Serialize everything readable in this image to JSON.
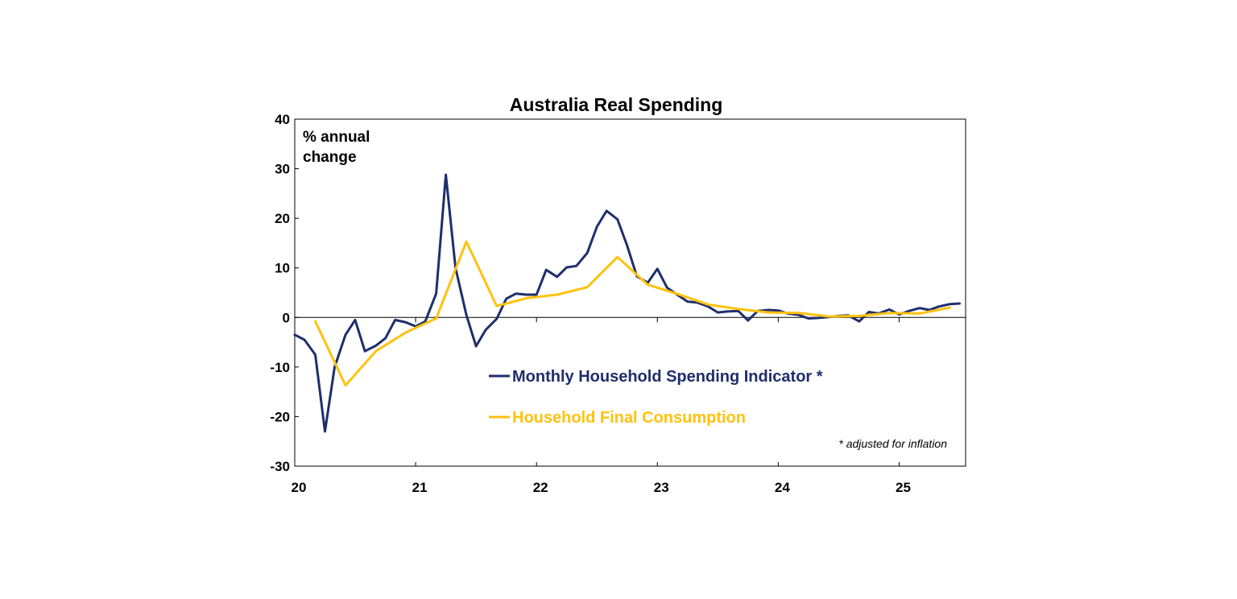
{
  "chart_data": {
    "type": "line",
    "title": "Australia Real Spending",
    "unit_label": [
      "% annual",
      "change"
    ],
    "xlabel": "",
    "ylabel": "",
    "xlim": [
      2020.0,
      2025.55
    ],
    "ylim": [
      -30,
      40
    ],
    "y_ticks": [
      40,
      30,
      20,
      10,
      0,
      -10,
      -20,
      -30
    ],
    "x_ticks": [
      {
        "value": 2020,
        "label": "20"
      },
      {
        "value": 2021,
        "label": "21"
      },
      {
        "value": 2022,
        "label": "22"
      },
      {
        "value": 2023,
        "label": "23"
      },
      {
        "value": 2024,
        "label": "24"
      },
      {
        "value": 2025,
        "label": "25"
      }
    ],
    "grid": false,
    "legend_position": "lower-right inside plot",
    "footnote": "* adjusted for inflation",
    "series": [
      {
        "name": "Monthly Household Spending Indicator *",
        "color": "#1f2e6b",
        "points": [
          [
            2020.0,
            -3.5
          ],
          [
            2020.08,
            -4.5
          ],
          [
            2020.17,
            -7.5
          ],
          [
            2020.25,
            -23.0
          ],
          [
            2020.33,
            -10.0
          ],
          [
            2020.42,
            -3.5
          ],
          [
            2020.5,
            -0.5
          ],
          [
            2020.58,
            -6.8
          ],
          [
            2020.67,
            -5.7
          ],
          [
            2020.75,
            -4.2
          ],
          [
            2020.83,
            -0.5
          ],
          [
            2020.92,
            -1.0
          ],
          [
            2021.0,
            -1.8
          ],
          [
            2021.08,
            -0.8
          ],
          [
            2021.17,
            4.8
          ],
          [
            2021.25,
            28.8
          ],
          [
            2021.33,
            10.0
          ],
          [
            2021.42,
            0.5
          ],
          [
            2021.5,
            -5.8
          ],
          [
            2021.58,
            -2.5
          ],
          [
            2021.67,
            -0.3
          ],
          [
            2021.75,
            3.8
          ],
          [
            2021.83,
            4.8
          ],
          [
            2021.92,
            4.6
          ],
          [
            2022.0,
            4.6
          ],
          [
            2022.08,
            9.6
          ],
          [
            2022.17,
            8.2
          ],
          [
            2022.25,
            10.1
          ],
          [
            2022.33,
            10.4
          ],
          [
            2022.42,
            13.0
          ],
          [
            2022.5,
            18.3
          ],
          [
            2022.58,
            21.5
          ],
          [
            2022.67,
            19.8
          ],
          [
            2022.75,
            14.5
          ],
          [
            2022.83,
            8.3
          ],
          [
            2022.92,
            7.0
          ],
          [
            2023.0,
            9.8
          ],
          [
            2023.08,
            6.0
          ],
          [
            2023.17,
            4.5
          ],
          [
            2023.25,
            3.2
          ],
          [
            2023.33,
            3.0
          ],
          [
            2023.42,
            2.2
          ],
          [
            2023.5,
            1.0
          ],
          [
            2023.58,
            1.2
          ],
          [
            2023.67,
            1.3
          ],
          [
            2023.75,
            -0.6
          ],
          [
            2023.83,
            1.3
          ],
          [
            2023.92,
            1.5
          ],
          [
            2024.0,
            1.4
          ],
          [
            2024.08,
            0.8
          ],
          [
            2024.17,
            0.5
          ],
          [
            2024.25,
            -0.2
          ],
          [
            2024.33,
            -0.1
          ],
          [
            2024.42,
            0.1
          ],
          [
            2024.5,
            0.3
          ],
          [
            2024.58,
            0.4
          ],
          [
            2024.67,
            -0.8
          ],
          [
            2024.75,
            1.1
          ],
          [
            2024.83,
            0.8
          ],
          [
            2024.92,
            1.6
          ],
          [
            2025.0,
            0.6
          ],
          [
            2025.08,
            1.3
          ],
          [
            2025.17,
            1.9
          ],
          [
            2025.25,
            1.5
          ],
          [
            2025.33,
            2.2
          ],
          [
            2025.42,
            2.7
          ],
          [
            2025.5,
            2.8
          ]
        ]
      },
      {
        "name": "Household Final Consumption",
        "color": "#ffc20e",
        "points": [
          [
            2020.17,
            -0.8
          ],
          [
            2020.42,
            -13.7
          ],
          [
            2020.67,
            -6.8
          ],
          [
            2020.92,
            -3.0
          ],
          [
            2021.17,
            -0.2
          ],
          [
            2021.42,
            15.3
          ],
          [
            2021.67,
            2.3
          ],
          [
            2021.92,
            3.9
          ],
          [
            2022.17,
            4.6
          ],
          [
            2022.42,
            6.1
          ],
          [
            2022.67,
            12.2
          ],
          [
            2022.92,
            6.6
          ],
          [
            2023.17,
            4.7
          ],
          [
            2023.42,
            2.6
          ],
          [
            2023.67,
            1.7
          ],
          [
            2023.92,
            1.0
          ],
          [
            2024.17,
            0.9
          ],
          [
            2024.42,
            0.2
          ],
          [
            2024.67,
            0.3
          ],
          [
            2024.92,
            0.9
          ],
          [
            2025.17,
            0.8
          ],
          [
            2025.42,
            2.0
          ]
        ]
      }
    ]
  }
}
